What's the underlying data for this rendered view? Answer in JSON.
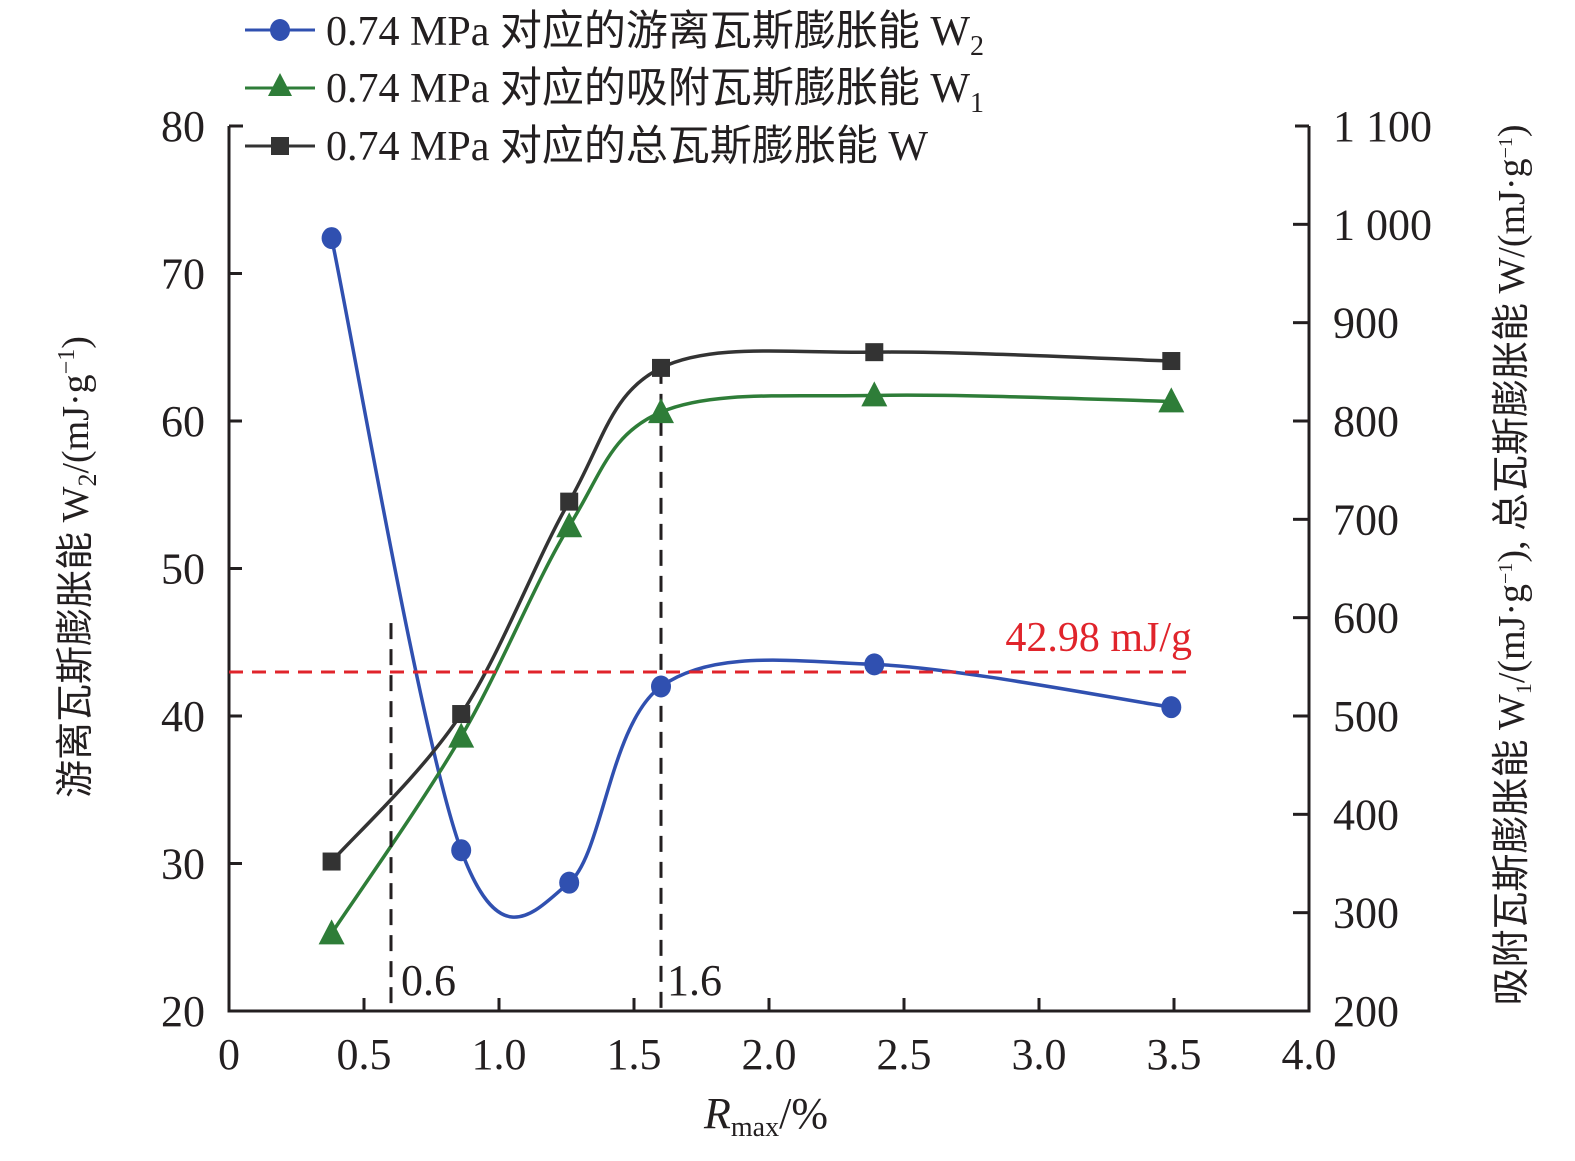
{
  "chart_data": {
    "type": "line",
    "title": "",
    "xlabel": "R",
    "xlabel_sub": "max",
    "xlabel_suffix": "/%",
    "ylabel_left": "游离瓦斯膨胀能 W",
    "ylabel_left_sub": "2",
    "ylabel_left_unit_pre": "/(mJ·g",
    "ylabel_left_unit_sup": "−1",
    "ylabel_left_unit_post": ")",
    "ylabel_right_part1": "吸附瓦斯膨胀能 W",
    "ylabel_right_sub1": "1",
    "ylabel_right_unit1_pre": "/(mJ·g",
    "ylabel_right_unit1_sup": "−1",
    "ylabel_right_unit1_post": "),",
    "ylabel_right_part2": " 总瓦斯膨胀能 W",
    "ylabel_right_unit2_pre": "/(mJ·g",
    "ylabel_right_unit2_sup": "−1",
    "ylabel_right_unit2_post": ")",
    "xlim": [
      0,
      4.0
    ],
    "ylim_left": [
      20,
      80
    ],
    "ylim_right": [
      200,
      1100
    ],
    "x_ticks": [
      0,
      0.5,
      1.0,
      1.5,
      2.0,
      2.5,
      3.0,
      3.5,
      4.0
    ],
    "x_tick_labels": [
      "0",
      "0.5",
      "1.0",
      "1.5",
      "2.0",
      "2.5",
      "3.0",
      "3.5",
      "4.0"
    ],
    "y_left_ticks": [
      20,
      30,
      40,
      50,
      60,
      70,
      80
    ],
    "y_left_tick_labels": [
      "20",
      "30",
      "40",
      "50",
      "60",
      "70",
      "80"
    ],
    "y_right_ticks": [
      200,
      300,
      400,
      500,
      600,
      700,
      800,
      900,
      1000,
      1100
    ],
    "y_right_tick_labels": [
      "200",
      "300",
      "400",
      "500",
      "600",
      "700",
      "800",
      "900",
      "1 000",
      "1 100"
    ],
    "grid": false,
    "legend_position": "top-left",
    "series": [
      {
        "name": "0.74 MPa 对应的游离瓦斯膨胀能 W",
        "name_sub": "2",
        "axis": "left",
        "marker": "circle",
        "color": "#3050B0",
        "x": [
          0.38,
          0.86,
          1.26,
          1.6,
          2.39,
          3.49
        ],
        "values": [
          72.4,
          30.9,
          28.7,
          42.0,
          43.5,
          40.6
        ]
      },
      {
        "name": "0.74 MPa 对应的吸附瓦斯膨胀能 W",
        "name_sub": "1",
        "axis": "right",
        "marker": "triangle",
        "color": "#2E7D38",
        "x": [
          0.38,
          0.86,
          1.26,
          1.6,
          2.39,
          3.49
        ],
        "values": [
          279,
          479,
          693,
          809,
          826,
          820
        ]
      },
      {
        "name": "0.74 MPa 对应的总瓦斯膨胀能 W",
        "name_sub": "",
        "axis": "right",
        "marker": "square",
        "color": "#333333",
        "x": [
          0.38,
          0.86,
          1.26,
          1.6,
          2.39,
          3.49
        ],
        "values": [
          352,
          502,
          718,
          854,
          870,
          861
        ]
      }
    ],
    "annotations": {
      "hline": {
        "value": 42.98,
        "axis": "left",
        "label": "42.98 mJ/g",
        "color": "#E0242B"
      },
      "vlines": [
        {
          "x": 0.6,
          "label": "0.6",
          "top_value_left": 46.3
        },
        {
          "x": 1.6,
          "label": "1.6",
          "top_value_right": 854
        }
      ]
    }
  }
}
